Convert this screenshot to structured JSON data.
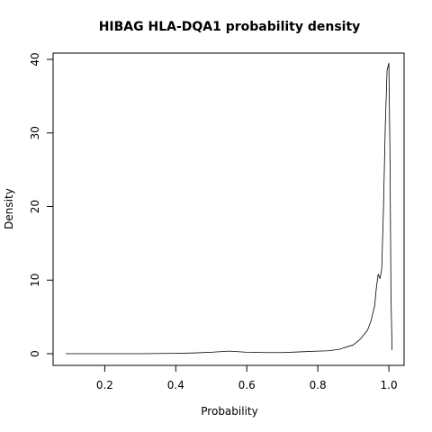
{
  "chart_data": {
    "type": "line",
    "title": "HIBAG HLA-DQA1 probability density",
    "xlabel": "Probability",
    "ylabel": "Density",
    "xlim": [
      0.09,
      1.01
    ],
    "ylim": [
      0,
      40
    ],
    "x_ticks": [
      0.2,
      0.4,
      0.6,
      0.8,
      1.0
    ],
    "x_tick_labels": [
      "0.2",
      "0.4",
      "0.6",
      "0.8",
      "1.0"
    ],
    "y_ticks": [
      0,
      10,
      20,
      30,
      40
    ],
    "y_tick_labels": [
      "0",
      "10",
      "20",
      "30",
      "40"
    ],
    "grid": false,
    "series": [
      {
        "color": "#000000",
        "x": [
          0.09,
          0.2,
          0.3,
          0.4,
          0.45,
          0.5,
          0.55,
          0.6,
          0.65,
          0.7,
          0.75,
          0.8,
          0.83,
          0.86,
          0.9,
          0.92,
          0.94,
          0.95,
          0.96,
          0.965,
          0.97,
          0.975,
          0.98,
          0.985,
          0.99,
          0.995,
          1.0,
          1.003,
          1.006,
          1.009
        ],
        "y": [
          0.0,
          0.0,
          0.0,
          0.05,
          0.1,
          0.2,
          0.35,
          0.2,
          0.15,
          0.15,
          0.25,
          0.35,
          0.4,
          0.6,
          1.2,
          2.0,
          3.2,
          4.5,
          6.5,
          9.0,
          10.8,
          10.2,
          11.5,
          20.0,
          31.0,
          38.5,
          39.5,
          28.0,
          8.0,
          0.5
        ]
      }
    ]
  }
}
